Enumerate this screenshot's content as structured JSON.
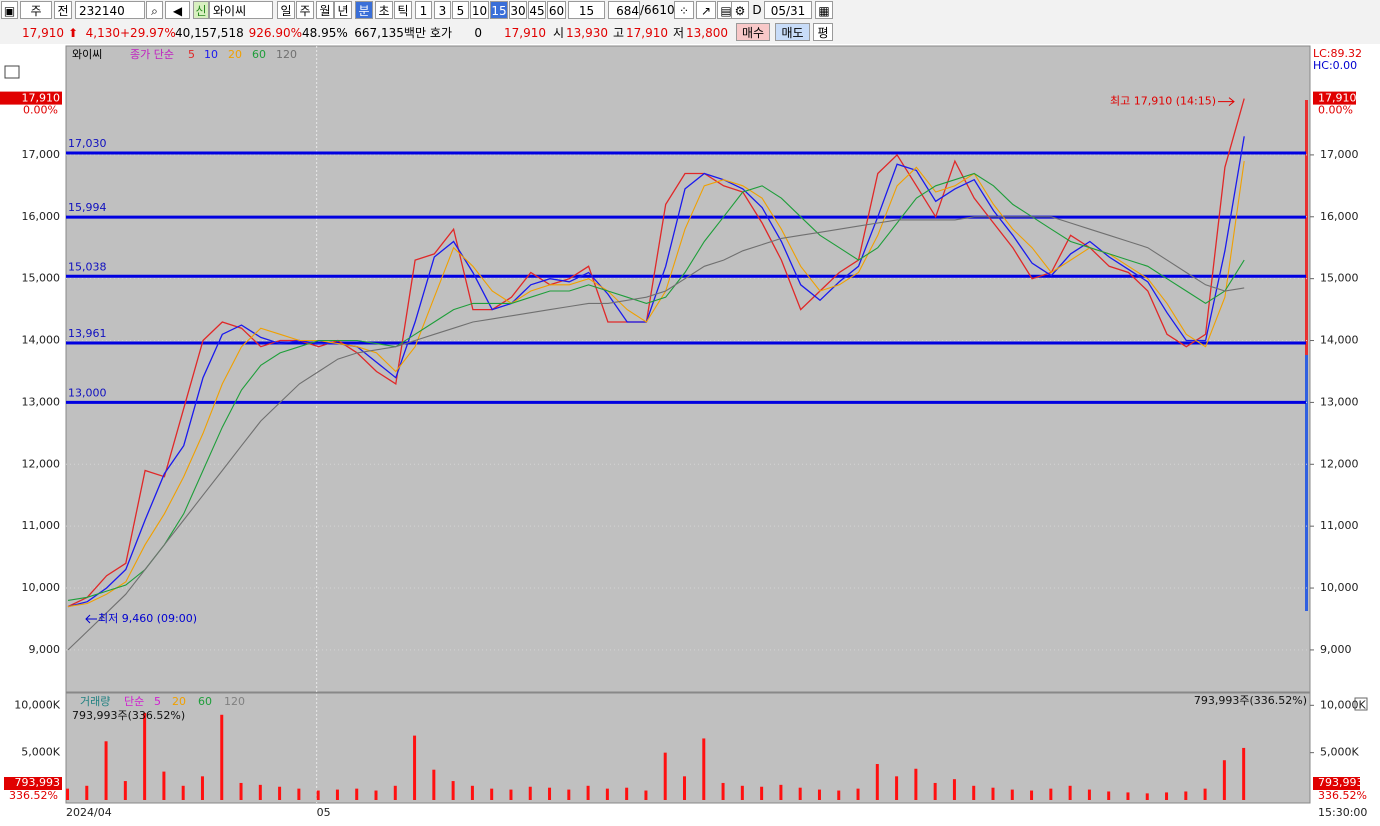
{
  "toolbar": {
    "market": "주",
    "scope": "전",
    "code": "232140",
    "badge": "신",
    "name": "와이씨",
    "periods": [
      "일",
      "주",
      "월",
      "년",
      "분",
      "초",
      "틱"
    ],
    "intervals": [
      "1",
      "3",
      "5",
      "10",
      "15",
      "30",
      "45",
      "60"
    ],
    "interval_input": "15",
    "count": "684",
    "total": "/6610",
    "d": "D",
    "date": "05/31"
  },
  "quote": {
    "price": "17,910",
    "change": "4,130",
    "change_pct": "+29.97%",
    "volume": "40,157,518",
    "volume_ratio": "926.90%",
    "turnover": "48.95%",
    "amount": "667,135백만",
    "hoga": "호가",
    "hoga_value": "0",
    "ask": "17,910",
    "open_label": "시",
    "open": "13,930",
    "high_label": "고",
    "high": "17,910",
    "low_label": "저",
    "low": "13,800",
    "buy": "매수",
    "sell": "매도",
    "avg": "평"
  },
  "chart_data": [
    {
      "type": "line",
      "title": "와이씨",
      "legend_prefix": "종가 단순",
      "grid": true,
      "categories": [
        "2024/04",
        null,
        null,
        null,
        null,
        null,
        null,
        null,
        null,
        null,
        null,
        null,
        null,
        "05",
        null,
        null,
        null,
        null,
        null,
        null,
        null,
        null,
        null,
        null,
        null,
        null,
        null,
        null,
        null,
        null,
        null,
        null,
        null,
        null,
        null,
        null,
        null,
        null,
        null,
        null,
        null,
        null,
        null,
        null,
        null,
        null,
        null,
        null,
        null,
        null,
        null,
        null,
        null,
        null,
        null,
        null,
        null,
        null,
        null,
        null,
        null,
        null,
        null,
        null,
        null
      ],
      "series": [
        {
          "name": "5",
          "color": "#e02828",
          "values": [
            9700,
            9850,
            10200,
            10400,
            11900,
            11800,
            12900,
            14000,
            14300,
            14200,
            13900,
            14000,
            14000,
            13900,
            14000,
            13800,
            13500,
            13300,
            15300,
            15400,
            15800,
            14500,
            14500,
            14700,
            15100,
            14900,
            15000,
            15200,
            14300,
            14300,
            14300,
            16200,
            16700,
            16700,
            16500,
            16400,
            15900,
            15300,
            14500,
            14800,
            15100,
            15300,
            16700,
            17000,
            16500,
            16000,
            16900,
            16300,
            15900,
            15500,
            15000,
            15100,
            15700,
            15500,
            15200,
            15100,
            14800,
            14100,
            13900,
            14100,
            16800,
            17910,
            null,
            null,
            null
          ]
        },
        {
          "name": "10",
          "color": "#1a1aee",
          "values": [
            9700,
            9780,
            10000,
            10300,
            11100,
            11850,
            12300,
            13400,
            14100,
            14250,
            14050,
            13950,
            14000,
            13950,
            13950,
            13900,
            13650,
            13400,
            14300,
            15350,
            15600,
            15100,
            14500,
            14600,
            14900,
            15000,
            14950,
            15100,
            14750,
            14300,
            14300,
            15200,
            16450,
            16700,
            16600,
            16450,
            16150,
            15600,
            14900,
            14650,
            14950,
            15200,
            16000,
            16850,
            16750,
            16250,
            16450,
            16600,
            16100,
            15700,
            15250,
            15050,
            15400,
            15600,
            15350,
            15150,
            14950,
            14450,
            14000,
            14000,
            15450,
            17300,
            null,
            null,
            null
          ]
        },
        {
          "name": "20",
          "color": "#f0a000",
          "values": [
            9700,
            9750,
            9900,
            10100,
            10700,
            11200,
            11800,
            12500,
            13300,
            13900,
            14200,
            14100,
            14000,
            14000,
            13950,
            13900,
            13800,
            13500,
            13900,
            14700,
            15500,
            15200,
            14800,
            14600,
            14800,
            14900,
            14900,
            15000,
            14800,
            14500,
            14300,
            14800,
            15800,
            16500,
            16600,
            16500,
            16300,
            15800,
            15200,
            14800,
            14900,
            15100,
            15700,
            16500,
            16800,
            16400,
            16500,
            16700,
            16200,
            15800,
            15500,
            15100,
            15300,
            15500,
            15400,
            15200,
            15000,
            14600,
            14100,
            13900,
            14700,
            16900,
            null,
            null,
            null
          ]
        },
        {
          "name": "60",
          "color": "#1e9e3a",
          "values": [
            9800,
            9850,
            9950,
            10050,
            10300,
            10700,
            11200,
            11900,
            12600,
            13200,
            13600,
            13800,
            13900,
            14000,
            14000,
            14000,
            13950,
            13900,
            14100,
            14300,
            14500,
            14600,
            14600,
            14600,
            14700,
            14800,
            14800,
            14900,
            14800,
            14700,
            14600,
            14700,
            15100,
            15600,
            16000,
            16400,
            16500,
            16300,
            16000,
            15700,
            15500,
            15300,
            15500,
            15900,
            16300,
            16500,
            16600,
            16700,
            16500,
            16200,
            16000,
            15800,
            15600,
            15500,
            15400,
            15300,
            15200,
            15000,
            14800,
            14600,
            14800,
            15300,
            null,
            null,
            null
          ]
        },
        {
          "name": "120",
          "color": "#707070",
          "values": [
            9000,
            9300,
            9600,
            9900,
            10300,
            10700,
            11100,
            11500,
            11900,
            12300,
            12700,
            13000,
            13300,
            13500,
            13700,
            13800,
            13850,
            13900,
            14000,
            14100,
            14200,
            14300,
            14350,
            14400,
            14450,
            14500,
            14550,
            14600,
            14600,
            14650,
            14700,
            14800,
            15000,
            15200,
            15300,
            15450,
            15550,
            15650,
            15700,
            15750,
            15800,
            15850,
            15900,
            15950,
            15950,
            15950,
            15950,
            16000,
            16000,
            16000,
            16000,
            16000,
            15900,
            15800,
            15700,
            15600,
            15500,
            15300,
            15100,
            14900,
            14800,
            14850,
            null,
            null,
            null
          ]
        }
      ],
      "ylim": [
        8320,
        18760
      ],
      "yticks": [
        {
          "value": 9000,
          "label": "9,000"
        },
        {
          "value": 10000,
          "label": "10,000"
        },
        {
          "value": 11000,
          "label": "11,000"
        },
        {
          "value": 12000,
          "label": "12,000"
        },
        {
          "value": 13000,
          "label": "13,000"
        },
        {
          "value": 14000,
          "label": "14,000"
        },
        {
          "value": 15000,
          "label": "15,000"
        },
        {
          "value": 16000,
          "label": "16,000"
        },
        {
          "value": 17000,
          "label": "17,000"
        }
      ],
      "levels": [
        {
          "value": 17030,
          "label": "17,030"
        },
        {
          "value": 15994,
          "label": "15,994"
        },
        {
          "value": 15038,
          "label": "15,038"
        },
        {
          "value": 13961,
          "label": "13,961"
        },
        {
          "value": 13000,
          "label": "13,000"
        }
      ],
      "last": {
        "value": 17910,
        "label": "17,910"
      },
      "last_change": "0.00%",
      "high_annotation": "최고 17,910 (14:15)",
      "low_annotation": "최저 9,460 (09:00)",
      "lc": "LC:89.32",
      "hc": "HC:0.00",
      "time_label": "15:30:00"
    },
    {
      "type": "bar",
      "title": "거래량",
      "ma_prefix": "단순",
      "ma_labels": [
        "5",
        "20",
        "60",
        "120"
      ],
      "ma_colors": [
        "#d020d0",
        "#f0a000",
        "#1e9e3a",
        "#808080"
      ],
      "color": "#ff1010",
      "values": [
        1200,
        1500,
        6200,
        2000,
        9200,
        3000,
        1500,
        2500,
        9000,
        1800,
        1600,
        1400,
        1200,
        1000,
        1100,
        1200,
        1000,
        1500,
        6800,
        3200,
        2000,
        1500,
        1200,
        1100,
        1400,
        1300,
        1100,
        1500,
        1200,
        1300,
        1000,
        5000,
        2500,
        6500,
        1800,
        1500,
        1400,
        1600,
        1300,
        1100,
        1000,
        1200,
        3800,
        2500,
        3300,
        1800,
        2200,
        1500,
        1300,
        1100,
        1000,
        1200,
        1500,
        1100,
        900,
        800,
        700,
        800,
        900,
        1200,
        4200,
        5500,
        null,
        null,
        null
      ],
      "ylim": [
        0,
        11300
      ],
      "yticks": [
        {
          "value": 5000,
          "label": "5,000K"
        },
        {
          "value": 10000,
          "label": "10,000K"
        }
      ],
      "volume_label": "793,993주(336.52%)",
      "last_label": "793,993",
      "last_pct": "336.52%"
    }
  ]
}
